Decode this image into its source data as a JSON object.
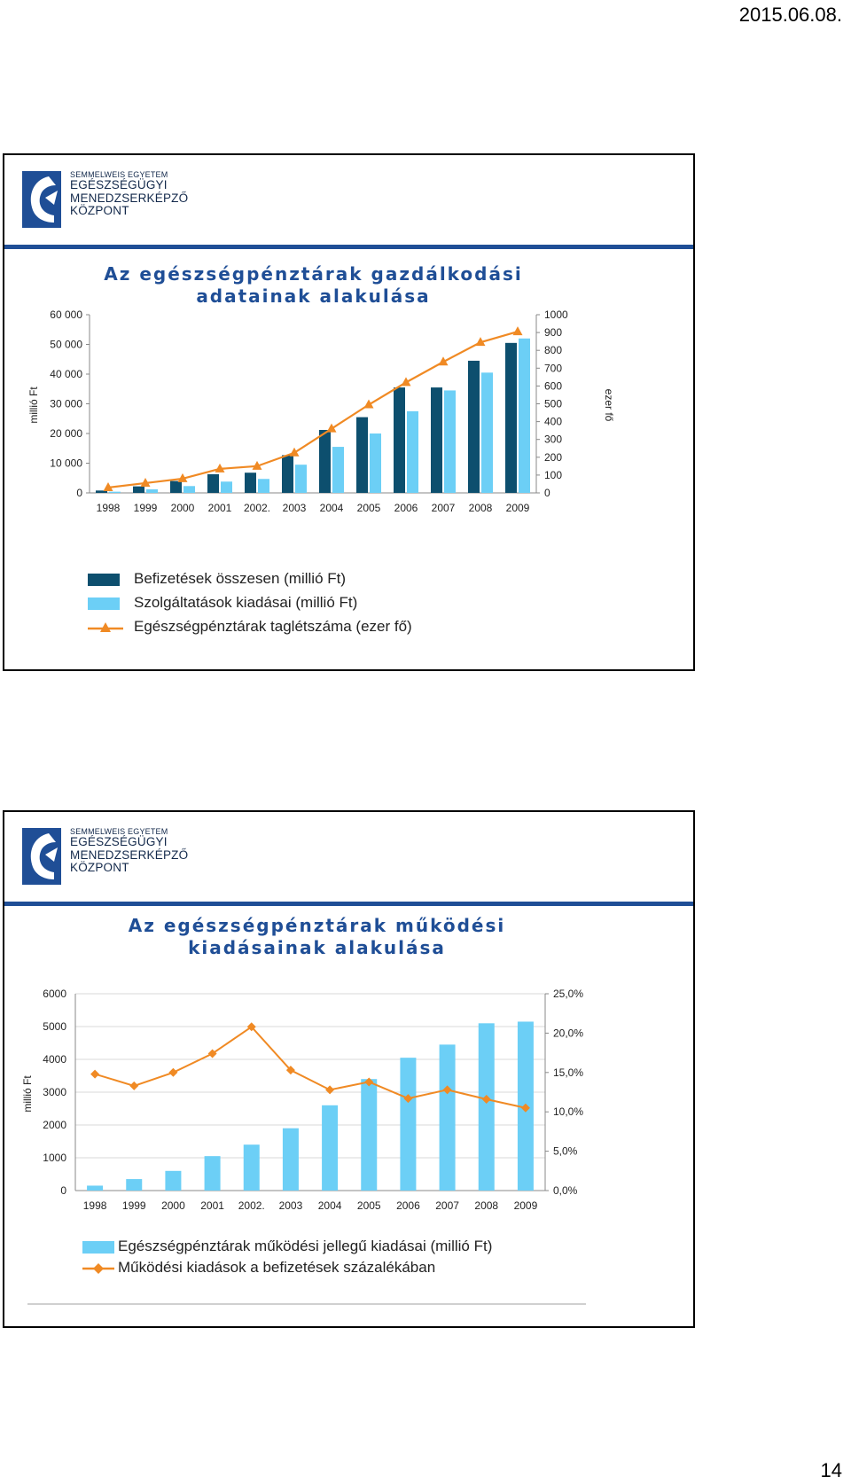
{
  "page": {
    "date": "2015.06.08.",
    "number": "14"
  },
  "logo": {
    "line1": "SEMMELWEIS EGYETEM",
    "line2": "EGÉSZSÉGÜGYI",
    "line3": "MENEDZSERKÉPZŐ",
    "line4": "KÖZPONT"
  },
  "colors": {
    "dark_bar": "#0d4f6e",
    "light_bar": "#6ccff6",
    "line": "#f08a24",
    "header_bar": "#1f4e96",
    "title": "#1f4e96"
  },
  "slides": [
    {
      "title_line1": "Az egészségpénztárak gazdálkodási",
      "title_line2": "adatainak alakulása"
    },
    {
      "title_line1": "Az egészségpénztárak működési",
      "title_line2": "kiadásainak alakulása"
    }
  ],
  "chart_data": [
    {
      "type": "bar",
      "categories": [
        "1998",
        "1999",
        "2000",
        "2001",
        "2002.",
        "2003",
        "2004",
        "2005",
        "2006",
        "2007",
        "2008",
        "2009"
      ],
      "series": [
        {
          "name": "Befizetések összesen (millió Ft)",
          "kind": "bar",
          "axis": "left",
          "values": [
            800,
            2200,
            4000,
            6300,
            6800,
            12700,
            21200,
            25500,
            35500,
            35500,
            44500,
            50500
          ]
        },
        {
          "name": "Szolgáltatások kiadásai (millió Ft)",
          "kind": "bar",
          "axis": "left",
          "values": [
            400,
            1200,
            2300,
            3800,
            4700,
            9500,
            15500,
            20000,
            27500,
            34500,
            40500,
            52000
          ]
        },
        {
          "name": "Egészségpénztárak taglétszáma (ezer fő)",
          "kind": "line",
          "marker": "triangle",
          "axis": "right",
          "values": [
            30,
            55,
            80,
            135,
            150,
            225,
            360,
            495,
            620,
            735,
            845,
            905
          ]
        }
      ],
      "ylabel": "millió Ft",
      "ylabel_right": "ezer fő",
      "yticks": [
        "0",
        "10 000",
        "20 000",
        "30 000",
        "40 000",
        "50 000",
        "60 000"
      ],
      "yticks_right": [
        "0",
        "100",
        "200",
        "300",
        "400",
        "500",
        "600",
        "700",
        "800",
        "900",
        "1000"
      ],
      "ylim": [
        0,
        60000
      ],
      "ylim_right": [
        0,
        1000
      ],
      "grid": false,
      "legend": "bottom"
    },
    {
      "type": "bar",
      "categories": [
        "1998",
        "1999",
        "2000",
        "2001",
        "2002.",
        "2003",
        "2004",
        "2005",
        "2006",
        "2007",
        "2008",
        "2009"
      ],
      "series": [
        {
          "name": "Egészségpénztárak működési jellegű kiadásai (millió Ft)",
          "kind": "bar",
          "axis": "left",
          "values": [
            150,
            350,
            600,
            1050,
            1400,
            1900,
            2600,
            3400,
            4050,
            4450,
            5100,
            5150
          ]
        },
        {
          "name": "Működési kiadások a befizetések százalékában",
          "kind": "line",
          "marker": "diamond",
          "axis": "right",
          "values": [
            14.8,
            13.3,
            15.0,
            17.4,
            20.8,
            15.3,
            12.8,
            13.8,
            11.7,
            12.8,
            11.6,
            10.5
          ]
        }
      ],
      "ylabel": "millió Ft",
      "yticks": [
        "0",
        "1000",
        "2000",
        "3000",
        "4000",
        "5000",
        "6000"
      ],
      "yticks_right": [
        "0,0%",
        "5,0%",
        "10,0%",
        "15,0%",
        "20,0%",
        "25,0%"
      ],
      "ylim": [
        0,
        6000
      ],
      "ylim_right": [
        0,
        25
      ],
      "grid": true,
      "legend": "bottom"
    }
  ]
}
